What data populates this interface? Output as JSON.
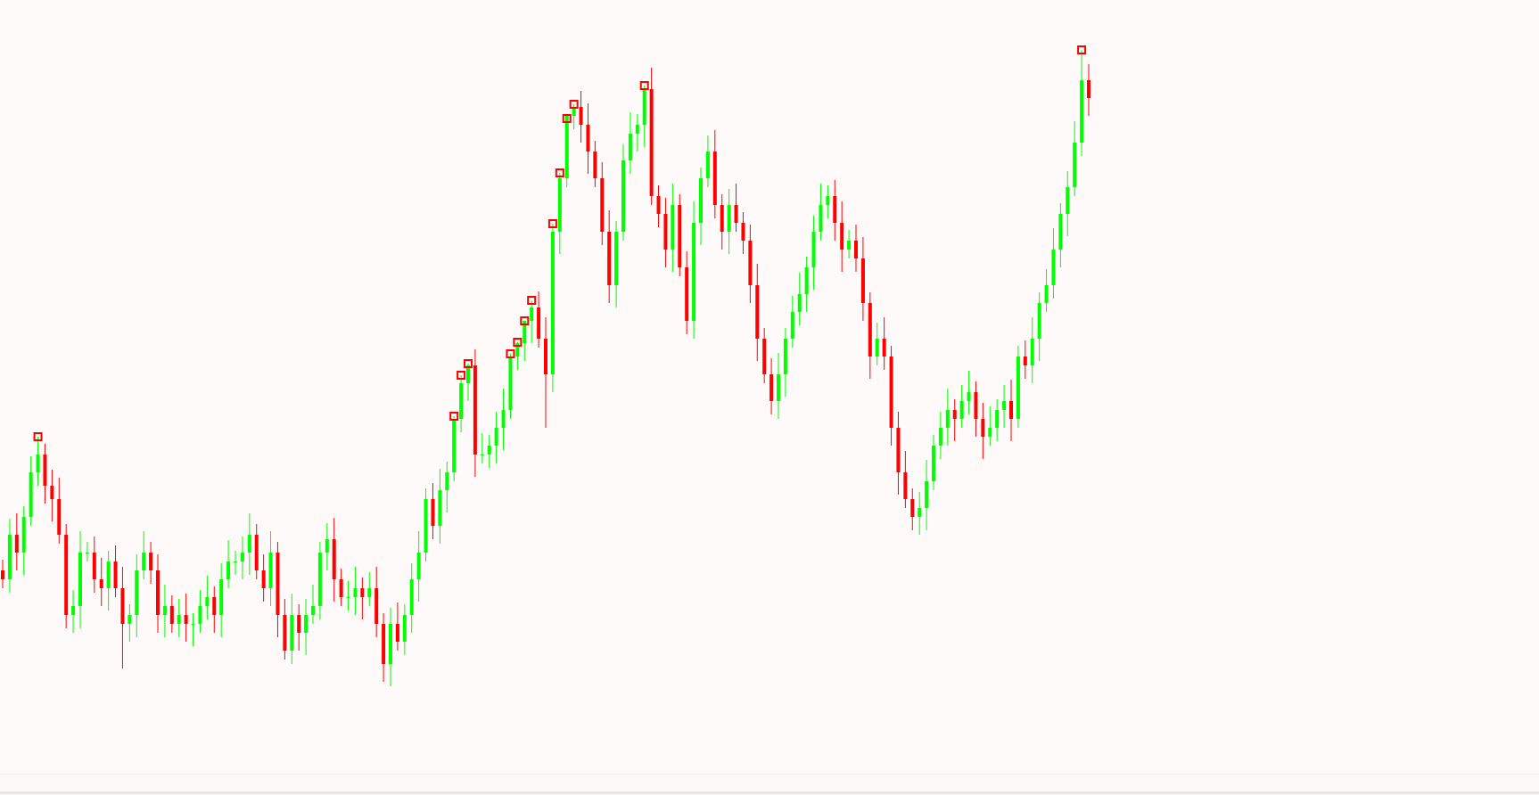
{
  "chart_data": {
    "type": "candlestick",
    "title": "",
    "xlabel": "",
    "ylabel": "",
    "ylim": [
      9,
      89
    ],
    "grid": false,
    "legend": "none",
    "colors": {
      "up": "#00ff00",
      "down": "#ff0000",
      "marker": "#ff0000",
      "background": "#fffafa"
    },
    "open_first": 26,
    "close": [
      25,
      30,
      28,
      32,
      37,
      39,
      35.5,
      34,
      30,
      21,
      22,
      28,
      28,
      25,
      24,
      27,
      24,
      20,
      21,
      26,
      28,
      26,
      21,
      22,
      20,
      21,
      20,
      20,
      22,
      23,
      21,
      25,
      27,
      27,
      28,
      30,
      26,
      24,
      28,
      21,
      17,
      21,
      19,
      21,
      22,
      28,
      29.5,
      25,
      23,
      23,
      24,
      23,
      24,
      20,
      15.5,
      20,
      18,
      21,
      25,
      28,
      34,
      31,
      35,
      37,
      43,
      47,
      49,
      39,
      39,
      40,
      42,
      44,
      50,
      51.5,
      54,
      55.5,
      52,
      48,
      64,
      70,
      77,
      78,
      76,
      73,
      70,
      64,
      58,
      64,
      72,
      75,
      76,
      80,
      68,
      66,
      62,
      67,
      60,
      54,
      65,
      70,
      73,
      67,
      64,
      67,
      65,
      63,
      58,
      52,
      48,
      45,
      48,
      52,
      55,
      57,
      60,
      64,
      67,
      68,
      65,
      62,
      63,
      61,
      56,
      50,
      52,
      50,
      42,
      37,
      34,
      32,
      33,
      36,
      40,
      42,
      44,
      43,
      45,
      46,
      43,
      41,
      42,
      44,
      45,
      43,
      50,
      49,
      52,
      56,
      58,
      62,
      66,
      69,
      74,
      81,
      79
    ],
    "wick_extremes": {
      "high": [
        {
          "index": 5,
          "value": 41
        },
        {
          "index": 64,
          "value": 43.3
        },
        {
          "index": 65,
          "value": 47.9
        },
        {
          "index": 66,
          "value": 49.2
        },
        {
          "index": 72,
          "value": 50.3
        },
        {
          "index": 73,
          "value": 51.6
        },
        {
          "index": 74,
          "value": 54
        },
        {
          "index": 75,
          "value": 56.3
        },
        {
          "index": 78,
          "value": 64.9
        },
        {
          "index": 79,
          "value": 70.6
        },
        {
          "index": 80,
          "value": 76.7
        },
        {
          "index": 81,
          "value": 78.3
        },
        {
          "index": 91,
          "value": 80.4
        },
        {
          "index": 153,
          "value": 84.4
        }
      ],
      "low": [
        {
          "index": 17,
          "value": 15
        },
        {
          "index": 54,
          "value": 13.5
        },
        {
          "index": 77,
          "value": 42
        }
      ]
    },
    "marked_highs": [
      5,
      64,
      65,
      66,
      72,
      73,
      74,
      75,
      78,
      79,
      80,
      81,
      91,
      153
    ]
  }
}
